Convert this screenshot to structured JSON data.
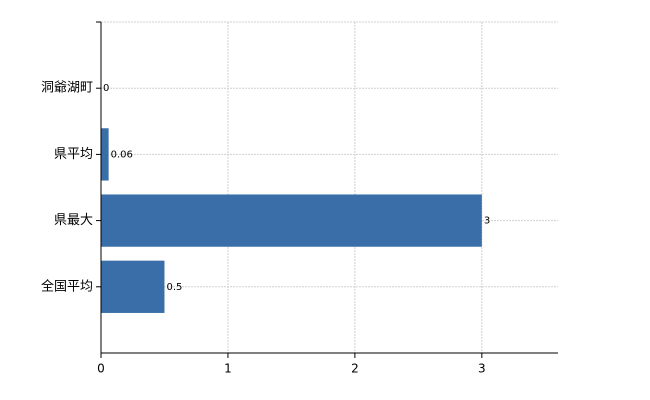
{
  "chart_data": {
    "type": "bar",
    "orientation": "horizontal",
    "categories": [
      "洞爺湖町",
      "県平均",
      "県最大",
      "全国平均"
    ],
    "values": [
      0,
      0.06,
      3,
      0.5
    ],
    "color": "#3a6ea8",
    "xlim": [
      0,
      3.6
    ],
    "xticks": [
      0,
      1,
      2,
      3
    ],
    "grid": true
  }
}
